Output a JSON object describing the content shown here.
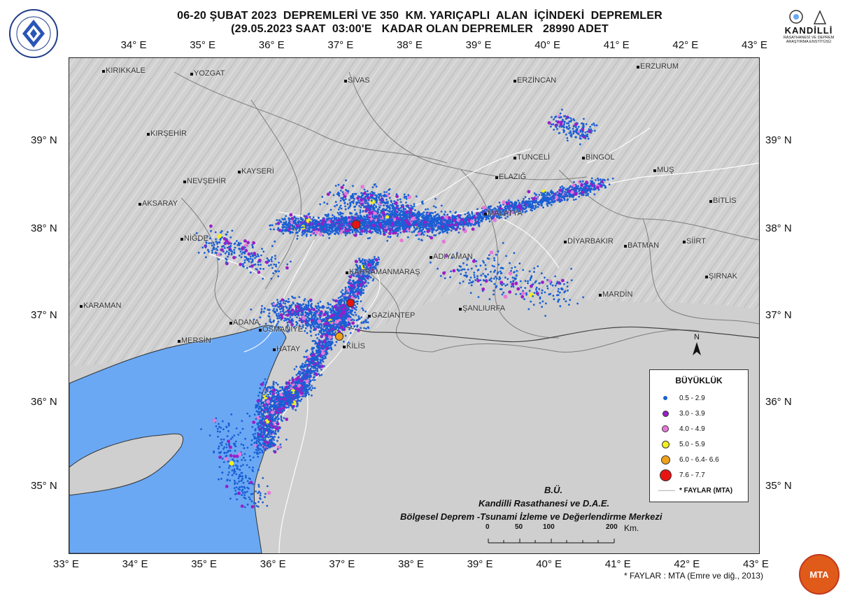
{
  "header": {
    "title_line1": "06-20 ŞUBAT 2023  DEPREMLERİ VE 350  KM. YARIÇAPLI  ALAN  İÇİNDEKİ  DEPREMLER",
    "title_line2": "(29.05.2023 SAAT  03:00'E   KADAR OLAN DEPREMLER   28990 ADET",
    "left_logo_text": "BOĞAZİÇİ ÜNİVERSİTESİ",
    "left_logo_year": "1863",
    "right_logo_name": "KANDİLLİ",
    "right_logo_sub": "RASATHANESİ VE DEPREM ARAŞTIRMA ENSTİTÜSÜ",
    "right_logo_year": "1868"
  },
  "axes": {
    "lon_labels": [
      "34° E",
      "35° E",
      "36° E",
      "37° E",
      "38° E",
      "39° E",
      "40° E",
      "41° E",
      "42° E",
      "43° E"
    ],
    "lon_bottom_labels": [
      "33° E",
      "34° E",
      "35° E",
      "36° E",
      "37° E",
      "38° E",
      "39° E",
      "40° E",
      "41° E",
      "42° E",
      "43° E"
    ],
    "lat_labels": [
      "39° N",
      "38° N",
      "37° N",
      "36° N",
      "35° N"
    ]
  },
  "cities": [
    "KIRIKKALE",
    "YOZGAT",
    "SİVAS",
    "ERZİNCAN",
    "ERZURUM",
    "KIRŞEHİR",
    "TUNCELİ",
    "BİNGÖL",
    "KAYSERİ",
    "NEVŞEHİR",
    "ELAZIĞ",
    "MUŞ",
    "AKSARAY",
    "BİTLİS",
    "MALATYA",
    "NİĞDE",
    "DİYARBAKIR",
    "BATMAN",
    "SİİRT",
    "ADIYAMAN",
    "KAHRAMANMARAŞ",
    "ŞIRNAK",
    "MARDİN",
    "KARAMAN",
    "ŞANLIURFA",
    "GAZİANTEP",
    "ADANA",
    "OSMANİYE",
    "MERSİN",
    "KİLİS",
    "HATAY"
  ],
  "legend": {
    "title": "BÜYÜKLÜK",
    "items": [
      {
        "label": "0.5 - 2.9",
        "color": "#1a5fd4"
      },
      {
        "label": "3.0 - 3.9",
        "color": "#9a1ec8"
      },
      {
        "label": "4.0 - 4.9",
        "color": "#e778d8"
      },
      {
        "label": "5.0 - 5.9",
        "color": "#f3f01e"
      },
      {
        "label": "6.0 - 6.4- 6.6",
        "color": "#f0a01a"
      },
      {
        "label": "7.6 - 7.7",
        "color": "#e81414"
      }
    ],
    "fault_label": "* FAYLAR (MTA)"
  },
  "credits": {
    "line1": "B.Ü.",
    "line2": "Kandilli Rasathanesi ve D.A.E.",
    "line3": "Bölgesel Deprem -Tsunami İzleme ve Değerlendirme Merkezi"
  },
  "scale": {
    "ticks": [
      "0",
      "50",
      "100",
      "200"
    ],
    "unit": "Km."
  },
  "north": "N",
  "footnote": "* FAYLAR : MTA (Emre ve diğ., 2013)",
  "mta_logo": "MTA",
  "colors": {
    "sea": "#6aa8f4",
    "land": "#cfcfcf",
    "faults": "#ffffff"
  }
}
